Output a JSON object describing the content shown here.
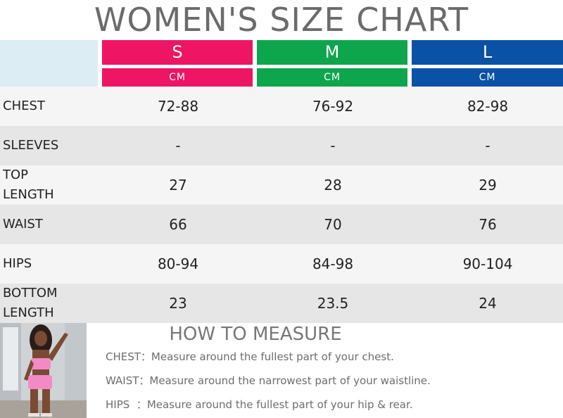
{
  "title": "WOMEN'S SIZE CHART",
  "sizes": [
    {
      "label": "S",
      "unit": "CM",
      "color": "#ee1565"
    },
    {
      "label": "M",
      "unit": "CM",
      "color": "#0ea64c"
    },
    {
      "label": "L",
      "unit": "CM",
      "color": "#0a52a6"
    }
  ],
  "rows": [
    {
      "label": "CHEST",
      "values": [
        "72-88",
        "76-92",
        "82-98"
      ]
    },
    {
      "label": "SLEEVES",
      "values": [
        "-",
        "-",
        "-"
      ]
    },
    {
      "label": "TOP\nLENGTH",
      "values": [
        "27",
        "28",
        "29"
      ]
    },
    {
      "label": "WAIST",
      "values": [
        "66",
        "70",
        "76"
      ]
    },
    {
      "label": "HIPS",
      "values": [
        "80-94",
        "84-98",
        "90-104"
      ]
    },
    {
      "label": "BOTTOM\nLENGTH",
      "values": [
        "23",
        "23.5",
        "24"
      ]
    }
  ],
  "how_to": {
    "title": "HOW TO MEASURE",
    "items": [
      {
        "key": "CHEST：",
        "text": "Measure around the fullest part of your chest."
      },
      {
        "key": "WAIST：",
        "text": "Measure around the narrowest part of your waistline."
      },
      {
        "key": "HIPS  ：",
        "text": "Measure around the fullest part of your hip & rear."
      }
    ]
  },
  "colors": {
    "title": "#6b6b6b",
    "header_corner": "#dcedf3",
    "row_light": "#f5f5f5",
    "row_dark": "#e6e6e6"
  },
  "photo": {
    "icon": "model-photo"
  }
}
